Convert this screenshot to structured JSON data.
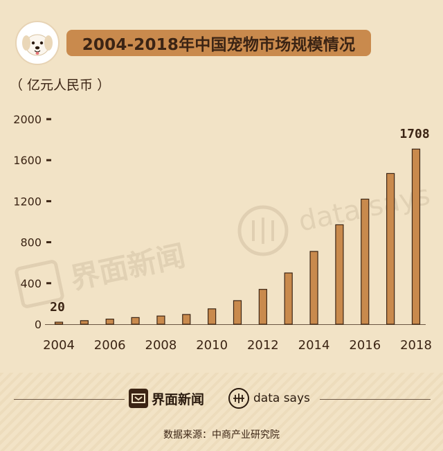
{
  "title": "2004-2018年中国宠物市场规模情况",
  "unit_label": "（ 亿元人民币 ）",
  "watermarks": {
    "jiemian": "界面新闻",
    "datasays": "data says"
  },
  "footer": {
    "brand_jiemian": "界面新闻",
    "brand_datasays": "data says",
    "source": "数据来源：中商产业研究院"
  },
  "colors": {
    "background": "#f2e3c6",
    "bar_fill": "#c98a4d",
    "bar_stroke": "#3b2414",
    "title_bg": "#c98a4d",
    "text": "#3b2414"
  },
  "icons": {
    "avatar": "dog-face-icon",
    "jiemian_logo": "jiemian-logo-icon",
    "datasays_logo": "datasays-logo-icon"
  },
  "chart_data": {
    "type": "bar",
    "title": "2004-2018年中国宠物市场规模情况",
    "ylabel": "（ 亿元人民币 ）",
    "xlabel": "",
    "ylim": [
      0,
      2000
    ],
    "y_ticks": [
      0,
      400,
      800,
      1200,
      1600,
      2000
    ],
    "x_tick_labels": [
      "2004",
      "2006",
      "2008",
      "2010",
      "2012",
      "2014",
      "2016",
      "2018"
    ],
    "categories": [
      "2004",
      "2005",
      "2006",
      "2007",
      "2008",
      "2009",
      "2010",
      "2011",
      "2012",
      "2013",
      "2014",
      "2015",
      "2016",
      "2017",
      "2018"
    ],
    "values": [
      20,
      35,
      50,
      65,
      80,
      95,
      150,
      230,
      340,
      500,
      710,
      970,
      1220,
      1470,
      1708
    ],
    "data_labels": [
      {
        "category": "2004",
        "text": "20"
      },
      {
        "category": "2018",
        "text": "1708"
      }
    ],
    "grid": false,
    "legend": "none"
  }
}
